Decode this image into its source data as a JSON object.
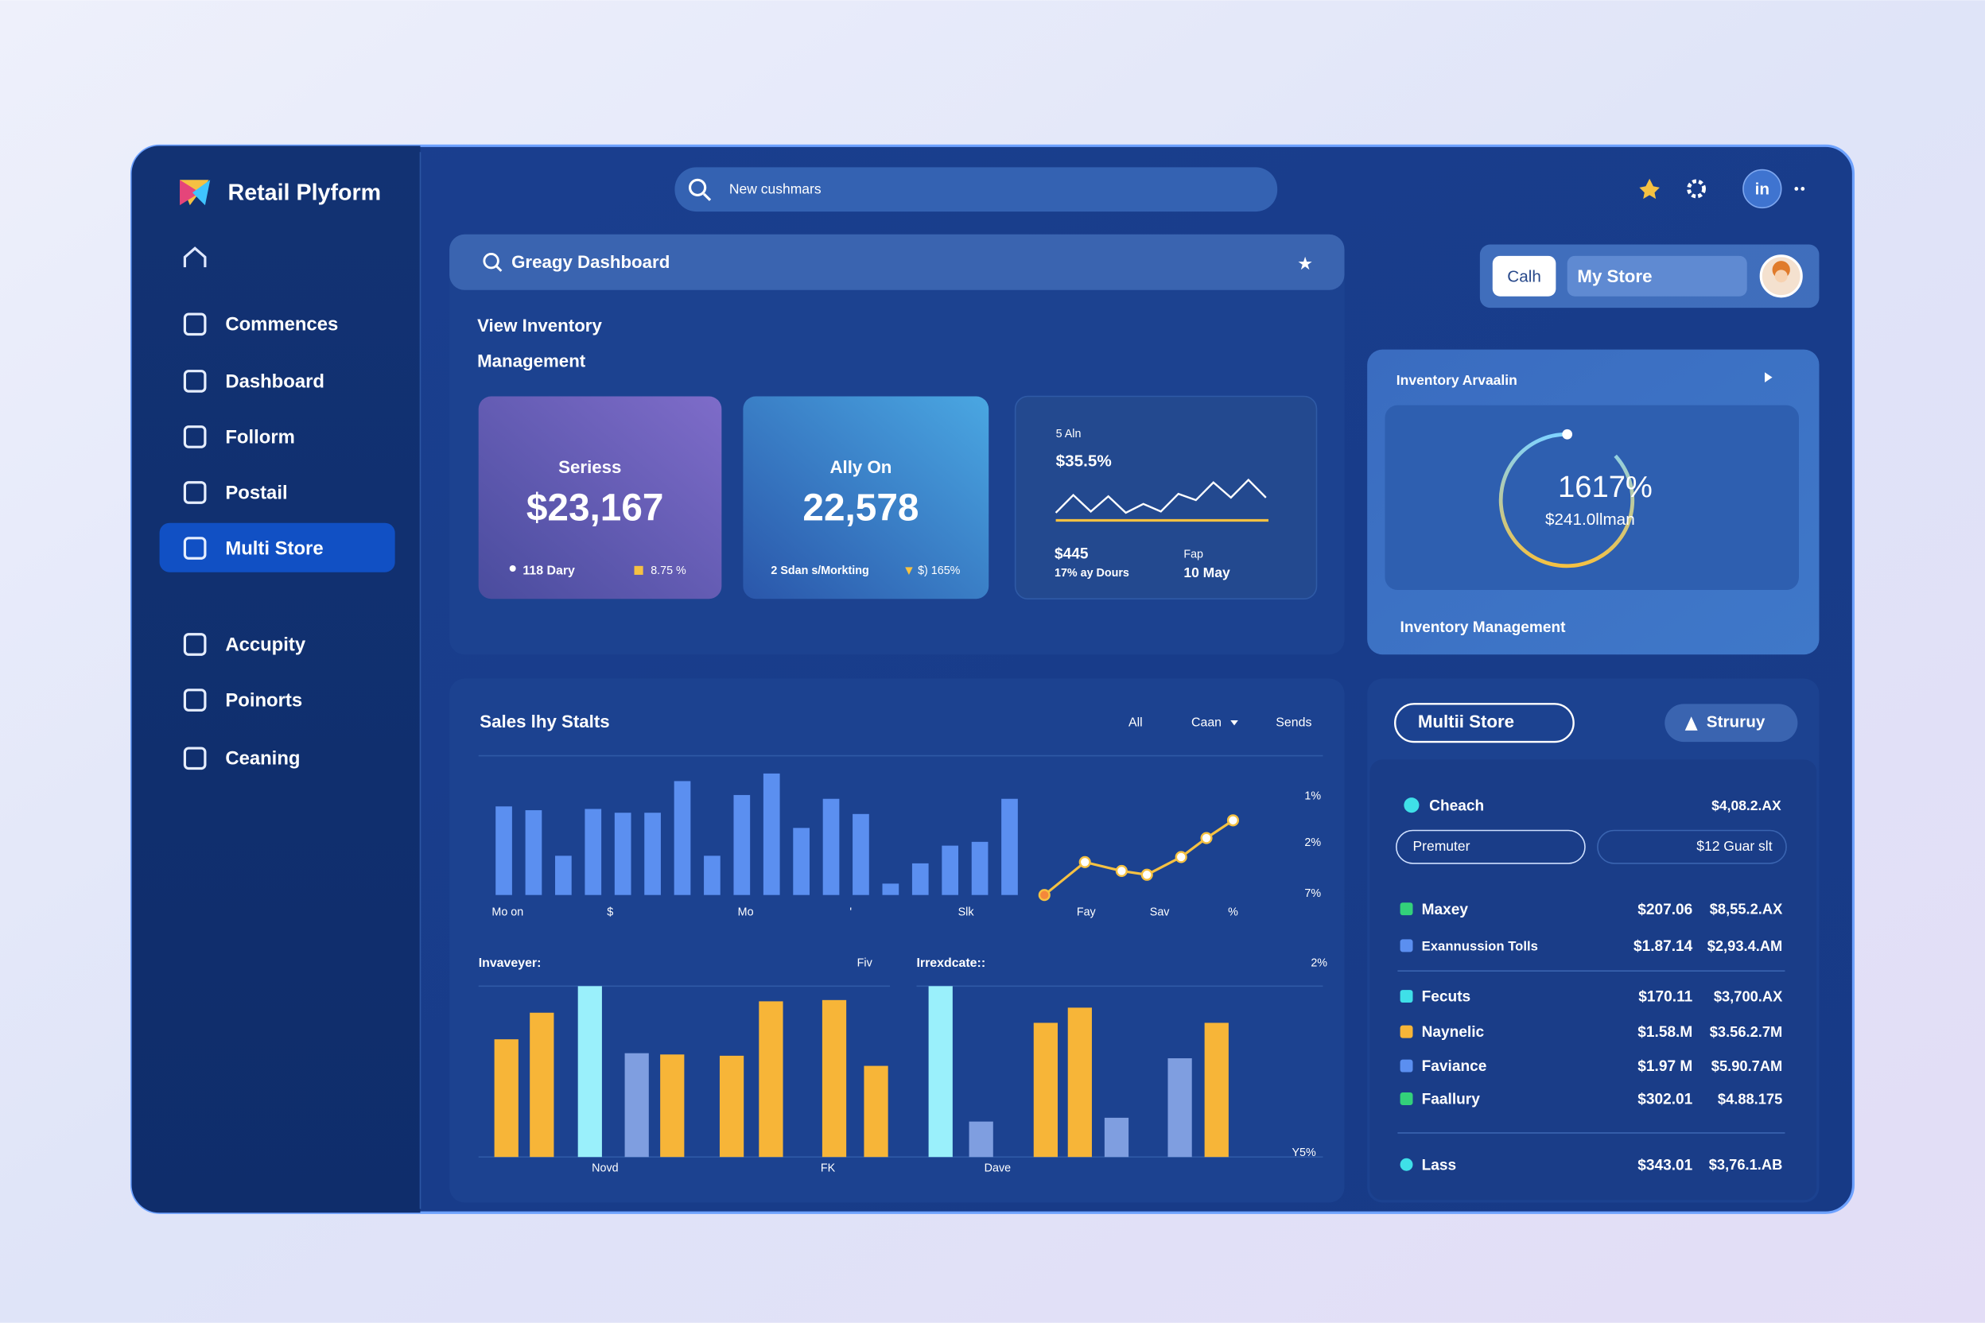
{
  "app": {
    "title": "Retail Plyform"
  },
  "sidebar": {
    "items": [
      "Commences",
      "Dashboard",
      "Follorm",
      "Postail",
      "Multi Store",
      "Accupity",
      "Poinorts",
      "Ceaning"
    ],
    "active_index": 4
  },
  "topbar": {
    "search": "New cushmars",
    "avatar": "in"
  },
  "dashboard": {
    "search": "Greagy Dashboard",
    "heading": [
      "View Inventory",
      "Management"
    ]
  },
  "store_switch": {
    "button": "Calh",
    "store": "My Store"
  },
  "cards": [
    {
      "title": "Seriess",
      "value": "$23,167",
      "foot": [
        "118 Dary",
        "8.75 %"
      ]
    },
    {
      "title": "Ally On",
      "value": "22,578",
      "foot": [
        "2 Sdan s/Morkting",
        "$) 165%"
      ]
    },
    {
      "label": "5 Aln",
      "value": "$35.5%",
      "foot": [
        "$445",
        "17% ay Dours",
        "Fap",
        "10 May"
      ]
    }
  ],
  "inventory": {
    "title": "Inventory Arvaalin",
    "percent": "1617%",
    "amount": "$241.0llman",
    "footer": "Inventory Management"
  },
  "sales": {
    "title": "Sales lhy Stalts",
    "filters": [
      "All",
      "Caan",
      "Sends"
    ],
    "x_labels": [
      "Mo on",
      "$",
      "Mo",
      "'",
      "Slk",
      "Fay",
      "Sav",
      "%"
    ],
    "right_labels": [
      "1%",
      "2%",
      "7%"
    ]
  },
  "chart_data": [
    {
      "type": "bar",
      "values": [
        70,
        67,
        31,
        68,
        65,
        65,
        90,
        31,
        79,
        96,
        53,
        76,
        64,
        9,
        25,
        39,
        42,
        76
      ],
      "color": "#5b8ff0"
    },
    {
      "type": "line",
      "values": [
        0,
        26,
        19,
        16,
        30,
        45,
        59
      ],
      "color": "#f5c142"
    },
    {
      "type": "bar",
      "title": "Invaveyer:",
      "side_label": "Fiv",
      "x_labels": [
        "Novd",
        "FK"
      ],
      "values": [
        93,
        114,
        135,
        82,
        81,
        80,
        123,
        124,
        72
      ],
      "colors": [
        "#f7b538",
        "#f7b538",
        "#9af0fb",
        "#7f9ee0",
        "#f7b538",
        "#f7b538",
        "#f7b538",
        "#f7b538",
        "#f7b538"
      ]
    },
    {
      "type": "bar",
      "title": "Irrexdcate::",
      "side_label": "2%",
      "corner_label": "Y5%",
      "x_labels": [
        "Dave"
      ],
      "values": [
        135,
        28,
        106,
        118,
        31,
        78,
        106
      ],
      "colors": [
        "#9af0fb",
        "#7f9ee0",
        "#f7b538",
        "#f7b538",
        "#7f9ee0",
        "#7f9ee0",
        "#f7b538"
      ]
    },
    {
      "type": "sparkline",
      "values": [
        5,
        19,
        6,
        18,
        5,
        12,
        6,
        20,
        15,
        29,
        17,
        31,
        17
      ],
      "color": "#ffffff"
    }
  ],
  "store_panel": {
    "tabs": [
      "Multii Store",
      "Struruy"
    ],
    "top": {
      "name": "Cheach",
      "value": "$4,08.2.AX",
      "color": "#3fe0e8"
    },
    "pills": [
      "Premuter",
      "$12 Guar slt"
    ],
    "rows": [
      {
        "name": "Maxey",
        "a": "$207.06",
        "b": "$8,55.2.AX",
        "color": "#33d17a"
      },
      {
        "name": "Exannussion Tolls",
        "a": "$1.87.14",
        "b": "$2,93.4.AM",
        "color": "#5b8ff0"
      },
      {
        "name": "Fecuts",
        "a": "$170.11",
        "b": "$3,700.AX",
        "color": "#3fe0e8"
      },
      {
        "name": "Naynelic",
        "a": "$1.58.M",
        "b": "$3.56.2.7M",
        "color": "#f7b538"
      },
      {
        "name": "Faviance",
        "a": "$1.97 M",
        "b": "$5.90.7AM",
        "color": "#5b8ff0"
      },
      {
        "name": "Faallury",
        "a": "$302.01",
        "b": "$4.88.175",
        "color": "#33d17a"
      },
      {
        "name": "Lass",
        "a": "$343.01",
        "b": "$3,76.1.AB",
        "color": "#3fe0e8"
      }
    ]
  }
}
